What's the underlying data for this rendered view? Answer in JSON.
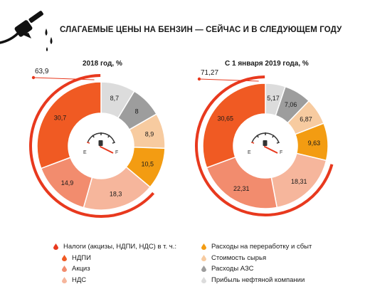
{
  "header": {
    "title": "СЛАГАЕМЫЕ ЦЕНЫ НА БЕНЗИН — СЕЙЧАС И В СЛЕДУЮЩЕМ ГОДУ",
    "icon": "fuel-nozzle-icon"
  },
  "gauge": {
    "empty_label": "E",
    "full_label": "F",
    "icon": "fuel-gauge-icon"
  },
  "colors": {
    "taxes_total": "#e8391e",
    "ndpi": "#f05a23",
    "excise": "#f28c6e",
    "vat": "#f6b69c",
    "processing": "#f39c12",
    "raw": "#f7cba0",
    "stations": "#9d9d9d",
    "profit": "#dcdcdc"
  },
  "chart_data": [
    {
      "type": "pie",
      "title": "2018 год, %",
      "total_taxes_label": "63,9",
      "total_taxes_value": 63.9,
      "slices": [
        {
          "key": "ndpi",
          "label": "30,7",
          "value": 30.7,
          "color": "#f05a23",
          "label_color": "#1a1a1a"
        },
        {
          "key": "excise",
          "label": "14,9",
          "value": 14.9,
          "color": "#f28c6e",
          "label_color": "#1a1a1a"
        },
        {
          "key": "vat",
          "label": "18,3",
          "value": 18.3,
          "color": "#f6b69c",
          "label_color": "#1a1a1a"
        },
        {
          "key": "processing",
          "label": "10,5",
          "value": 10.5,
          "color": "#f39c12",
          "label_color": "#1a1a1a"
        },
        {
          "key": "raw",
          "label": "8,9",
          "value": 8.9,
          "color": "#f7cba0",
          "label_color": "#1a1a1a"
        },
        {
          "key": "stations",
          "label": "8",
          "value": 8.0,
          "color": "#9d9d9d",
          "label_color": "#1a1a1a"
        },
        {
          "key": "profit",
          "label": "8,7",
          "value": 8.7,
          "color": "#dcdcdc",
          "label_color": "#1a1a1a"
        }
      ]
    },
    {
      "type": "pie",
      "title": "С 1 января 2019 года, %",
      "total_taxes_label": "71,27",
      "total_taxes_value": 71.27,
      "slices": [
        {
          "key": "ndpi",
          "label": "30,65",
          "value": 30.65,
          "color": "#f05a23",
          "label_color": "#1a1a1a"
        },
        {
          "key": "excise",
          "label": "22,31",
          "value": 22.31,
          "color": "#f28c6e",
          "label_color": "#1a1a1a"
        },
        {
          "key": "vat",
          "label": "18,31",
          "value": 18.31,
          "color": "#f6b69c",
          "label_color": "#1a1a1a"
        },
        {
          "key": "processing",
          "label": "9,63",
          "value": 9.63,
          "color": "#f39c12",
          "label_color": "#1a1a1a"
        },
        {
          "key": "raw",
          "label": "6,87",
          "value": 6.87,
          "color": "#f7cba0",
          "label_color": "#1a1a1a"
        },
        {
          "key": "stations",
          "label": "7,06",
          "value": 7.06,
          "color": "#9d9d9d",
          "label_color": "#1a1a1a"
        },
        {
          "key": "profit",
          "label": "5,17",
          "value": 5.17,
          "color": "#dcdcdc",
          "label_color": "#1a1a1a"
        }
      ]
    }
  ],
  "legend": {
    "left": [
      {
        "key": "taxes_total",
        "text": "Налоги (акцизы, НДПИ, НДС) в т. ч.:",
        "indent": false
      },
      {
        "key": "ndpi",
        "text": "НДПИ",
        "indent": true
      },
      {
        "key": "excise",
        "text": "Акциз",
        "indent": true
      },
      {
        "key": "vat",
        "text": "НДС",
        "indent": true
      }
    ],
    "right": [
      {
        "key": "processing",
        "text": "Расходы на переработку и сбыт",
        "indent": false
      },
      {
        "key": "raw",
        "text": "Стоимость сырья",
        "indent": false
      },
      {
        "key": "stations",
        "text": "Расходы АЗС",
        "indent": false
      },
      {
        "key": "profit",
        "text": "Прибыль нефтяной компании",
        "indent": false
      }
    ]
  }
}
